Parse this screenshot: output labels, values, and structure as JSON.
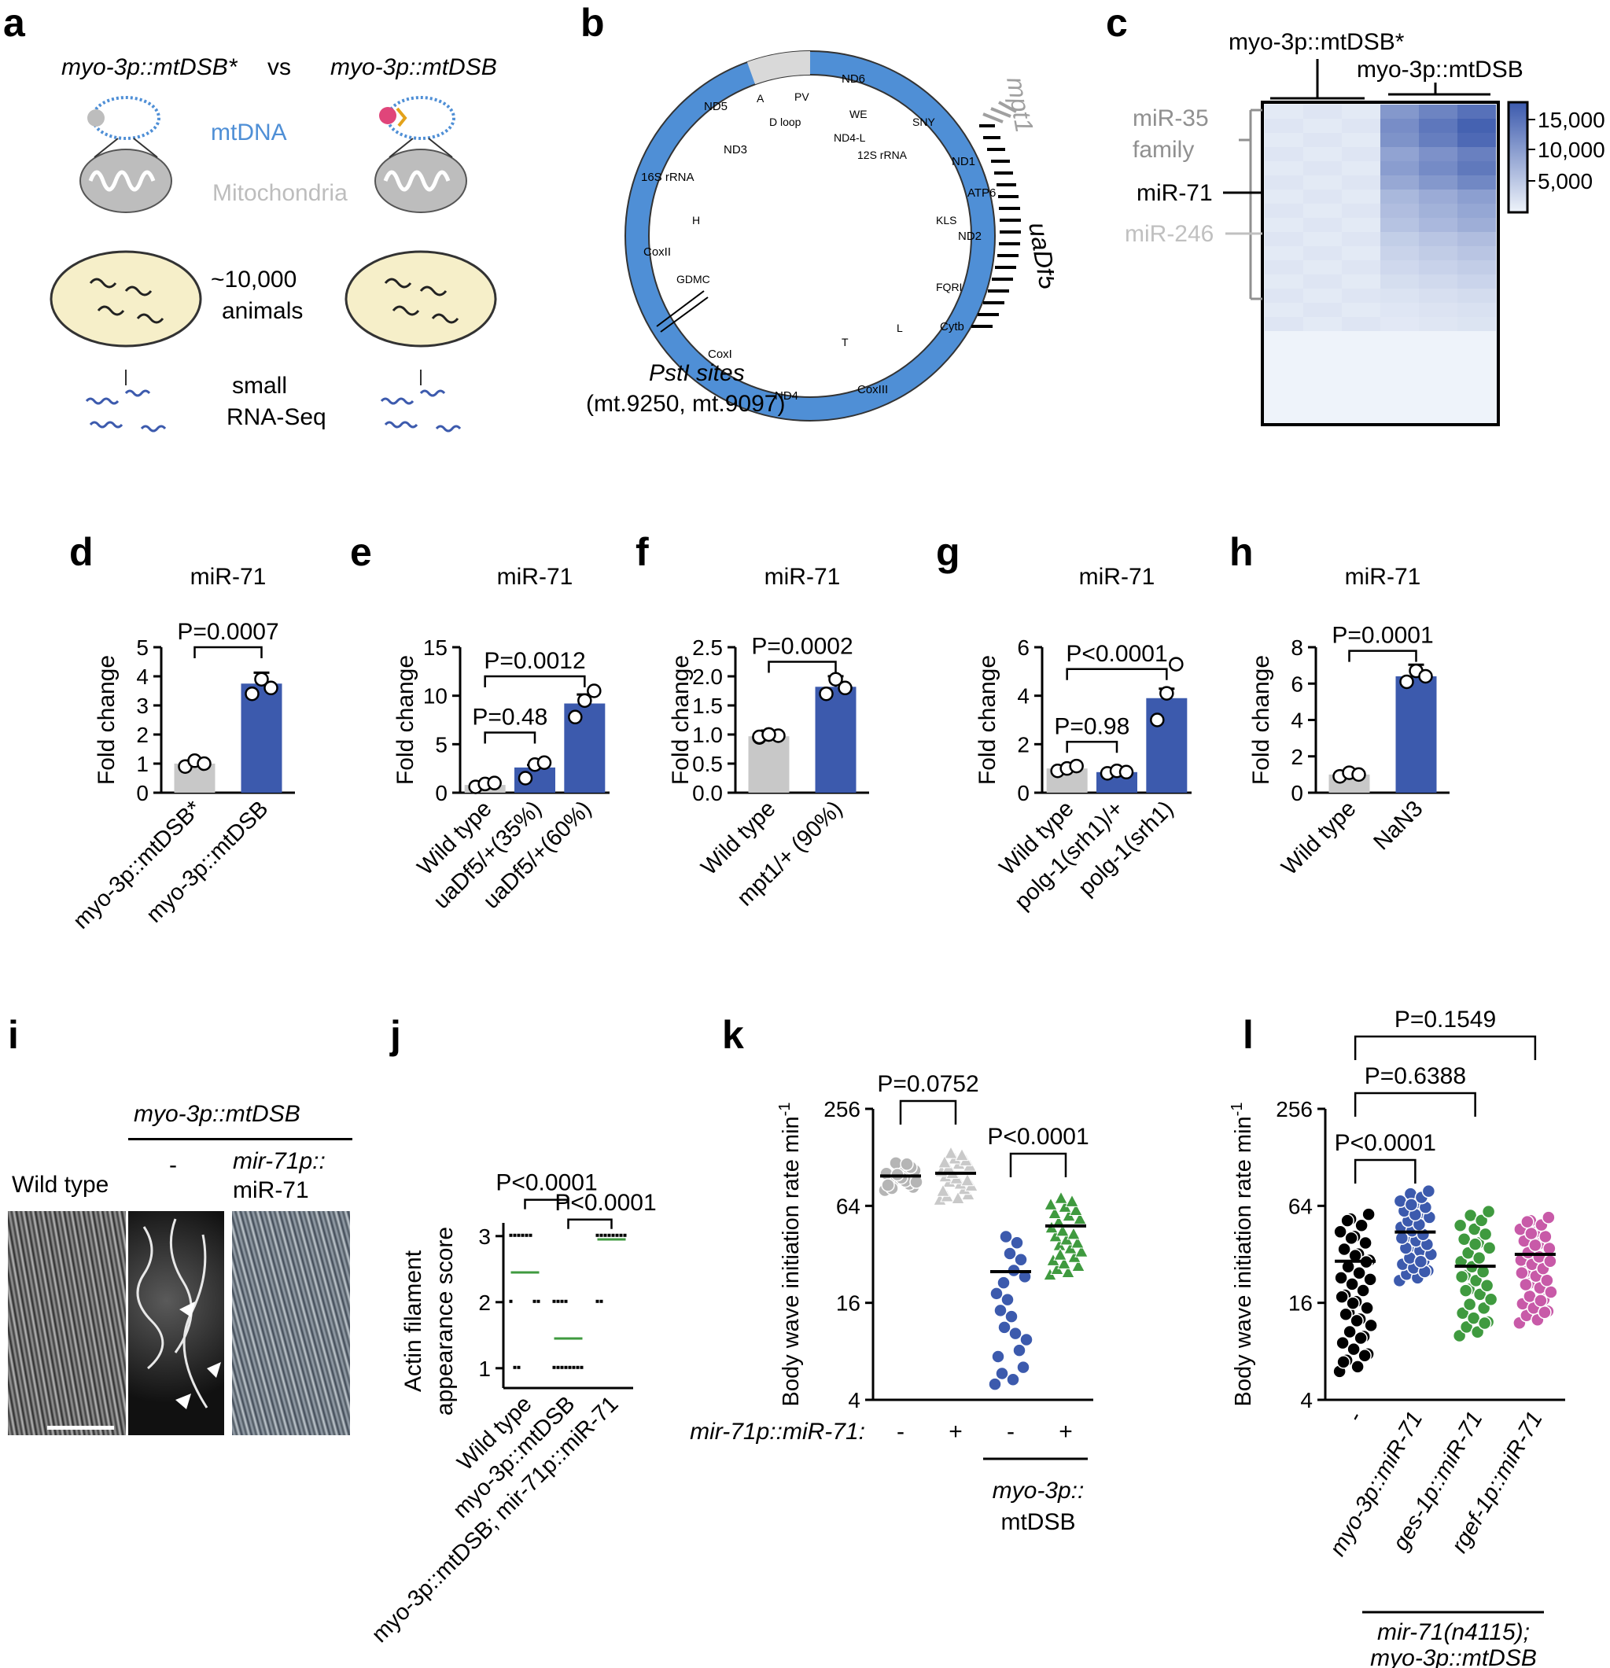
{
  "colors": {
    "gray": "#c8c8c8",
    "blue": "#3c5aad",
    "green": "#3f9a3f",
    "magenta": "#c85aa8",
    "black": "#000000",
    "mtdna_blue": "#4f8fd6",
    "mito_gray": "#bdbdbd"
  },
  "panels": {
    "a": "a",
    "b": "b",
    "c": "c",
    "d": "d",
    "e": "e",
    "f": "f",
    "g": "g",
    "h": "h",
    "i": "i",
    "j": "j",
    "k": "k",
    "l": "l"
  },
  "panel_a": {
    "left_title": "myo-3p::mtDSB*",
    "vs": "vs",
    "right_title": "myo-3p::mtDSB",
    "mtdna": "mtDNA",
    "mitochondria": "Mitochondria",
    "animals_1": "~10,000",
    "animals_2": "animals",
    "seq_1": "small",
    "seq_2": "RNA-Seq"
  },
  "panel_b": {
    "genes": [
      "ND6",
      "ND5",
      "ND4",
      "ND3",
      "ND2",
      "ND1",
      "ATP6",
      "CoxI",
      "CoxII",
      "CoxIII",
      "Cytb",
      "16S rRNA"
    ],
    "labels": [
      "A",
      "PV",
      "D loop",
      "WE",
      "ND4-L",
      "SNY",
      "12S rRNA",
      "KLS",
      "FQRI",
      "T",
      "L",
      "H",
      "GDMC"
    ],
    "mpt1": "mpt1",
    "uadf5": "uaDf5",
    "psti_1": "PstI sites",
    "psti_2": "(mt.9250, mt.9097)"
  },
  "panel_c": {
    "group1": "myo-3p::mtDSB*",
    "group2": "myo-3p::mtDSB",
    "row_labels": [
      "miR-35",
      "family",
      "miR-71",
      "miR-246"
    ],
    "scale": [
      "15,000",
      "10,000",
      "5,000"
    ]
  },
  "chart_data": [
    {
      "panel": "d",
      "type": "bar",
      "title": "miR-71",
      "ylabel": "Fold change",
      "categories": [
        "myo-3p::mtDSB*",
        "myo-3p::mtDSB"
      ],
      "values": [
        1.0,
        3.75
      ],
      "ylim": [
        0,
        5
      ],
      "yticks": [
        "0",
        "1",
        "2",
        "3",
        "4",
        "5"
      ],
      "annotations": [
        "P=0.0007"
      ]
    },
    {
      "panel": "e",
      "type": "bar",
      "title": "miR-71",
      "ylabel": "Fold change",
      "categories": [
        "Wild type",
        "uaDf5/+(35%)",
        "uaDf5/+(60%)"
      ],
      "values": [
        0.8,
        2.6,
        9.2
      ],
      "ylim": [
        0,
        15
      ],
      "yticks": [
        "0",
        "5",
        "10",
        "15"
      ],
      "annotations": [
        "P=0.48",
        "P=0.0012"
      ]
    },
    {
      "panel": "f",
      "type": "bar",
      "title": "miR-71",
      "ylabel": "Fold change",
      "categories": [
        "Wild type",
        "mpt1/+ (90%)"
      ],
      "values": [
        0.97,
        1.82
      ],
      "ylim": [
        0,
        2.5
      ],
      "yticks": [
        "0.0",
        "0.5",
        "1.0",
        "1.5",
        "2.0",
        "2.5"
      ],
      "annotations": [
        "P=0.0002"
      ]
    },
    {
      "panel": "g",
      "type": "bar",
      "title": "miR-71",
      "ylabel": "Fold change",
      "categories": [
        "Wild type",
        "polg-1(srh1)/+",
        "polg-1(srh1)"
      ],
      "values": [
        1.0,
        0.85,
        3.9
      ],
      "ylim": [
        0,
        6
      ],
      "yticks": [
        "0",
        "2",
        "4",
        "6"
      ],
      "annotations": [
        "P=0.98",
        "P<0.0001"
      ]
    },
    {
      "panel": "h",
      "type": "bar",
      "title": "miR-71",
      "ylabel": "Fold change",
      "categories": [
        "Wild type",
        "NaN3"
      ],
      "values": [
        1.0,
        6.4
      ],
      "ylim": [
        0,
        8
      ],
      "yticks": [
        "0",
        "2",
        "4",
        "6",
        "8"
      ],
      "annotations": [
        "P=0.0001"
      ]
    },
    {
      "panel": "j",
      "type": "scatter",
      "ylabel": "Actin filament appearance score",
      "categories": [
        "Wild type",
        "myo-3p::mtDSB",
        "myo-3p::mtDSB; mir-71p::miR-71"
      ],
      "means": [
        2.45,
        1.45,
        2.95
      ],
      "ylim": [
        0.7,
        3.2
      ],
      "yticks": [
        "1",
        "2",
        "3"
      ],
      "annotations": [
        "P<0.0001",
        "P<0.0001"
      ]
    },
    {
      "panel": "k",
      "type": "scatter",
      "ylabel": "Body wave initiation rate min-1",
      "ylog": true,
      "ylim": [
        4,
        256
      ],
      "yticks": [
        "4",
        "16",
        "64",
        "256"
      ],
      "xrow_label": "mir-71p::miR-71:",
      "xrow": [
        "-",
        "+",
        "-",
        "+"
      ],
      "group_label_1": "myo-3p::",
      "group_label_2": "mtDSB",
      "means": [
        98,
        102,
        25,
        48
      ],
      "annotations": [
        "P=0.0752",
        "P<0.0001"
      ]
    },
    {
      "panel": "l",
      "type": "scatter",
      "ylabel": "Body wave initiation rate min-1",
      "ylog": true,
      "ylim": [
        4,
        256
      ],
      "yticks": [
        "4",
        "16",
        "64",
        "256"
      ],
      "categories": [
        "-",
        "myo-3p::miR-71",
        "ges-1p::miR-71",
        "rgef-1p::miR-71"
      ],
      "means": [
        29,
        44,
        27,
        32
      ],
      "group_label_1": "mir-71(n4115);",
      "group_label_2": "myo-3p::mtDSB",
      "annotations": [
        "P<0.0001",
        "P=0.6388",
        "P=0.1549"
      ]
    }
  ],
  "panel_i": {
    "group": "myo-3p::mtDSB",
    "wild_type": "Wild type",
    "minus": "-",
    "rescue_1": "mir-71p::",
    "rescue_2": "miR-71"
  }
}
